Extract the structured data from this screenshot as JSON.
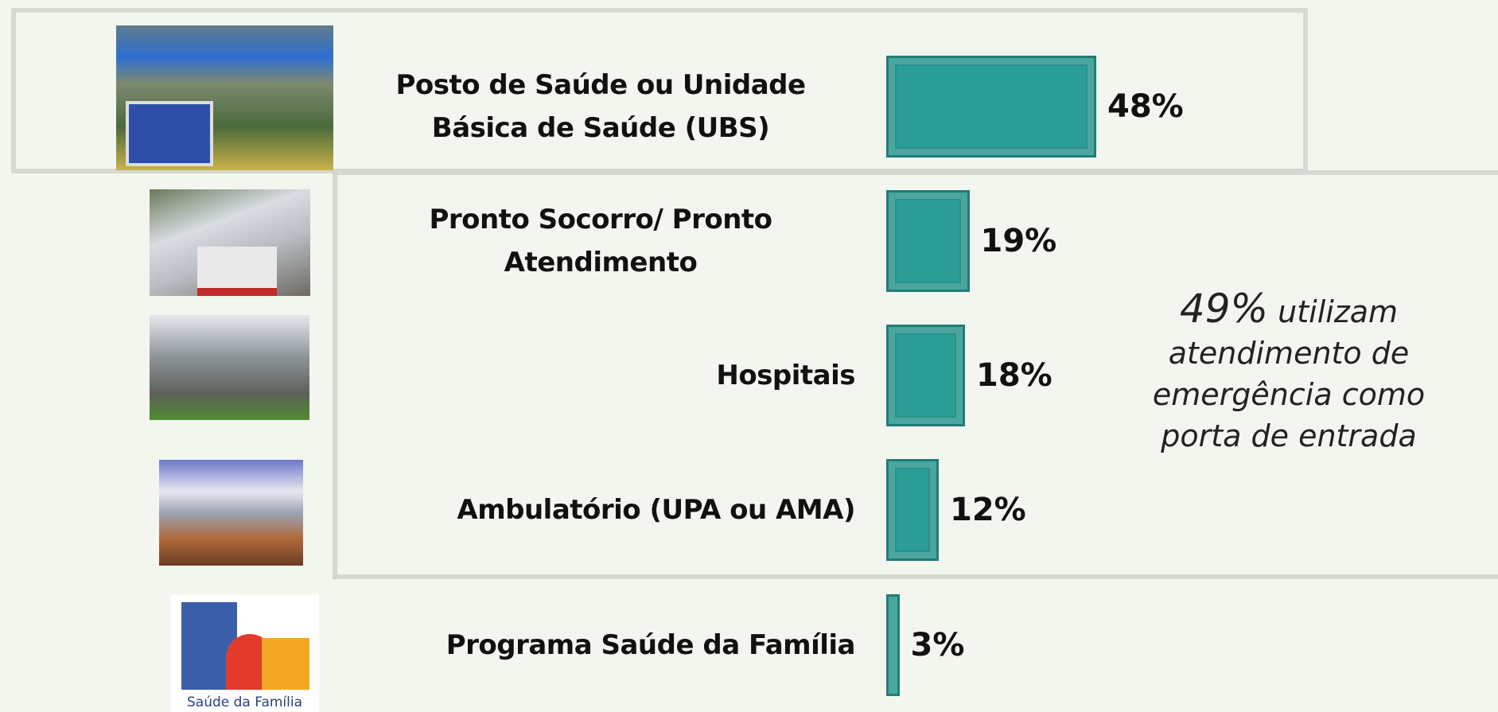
{
  "chart_data": {
    "type": "bar",
    "orientation": "horizontal",
    "categories": [
      "Posto de Saúde ou Unidade Básica de Saúde (UBS)",
      "Pronto Socorro/ Pronto Atendimento",
      "Hospitais",
      "Ambulatório (UPA ou AMA)",
      "Programa Saúde da Família"
    ],
    "values": [
      48,
      19,
      18,
      12,
      3
    ],
    "value_labels": [
      "48%",
      "19%",
      "18%",
      "12%",
      "3%"
    ],
    "color": "#2b9f97",
    "annotation": {
      "highlight": "49%",
      "text": "utilizam atendimento de emergência como porta de entrada"
    },
    "logo_caption": "Saúde da Família"
  }
}
